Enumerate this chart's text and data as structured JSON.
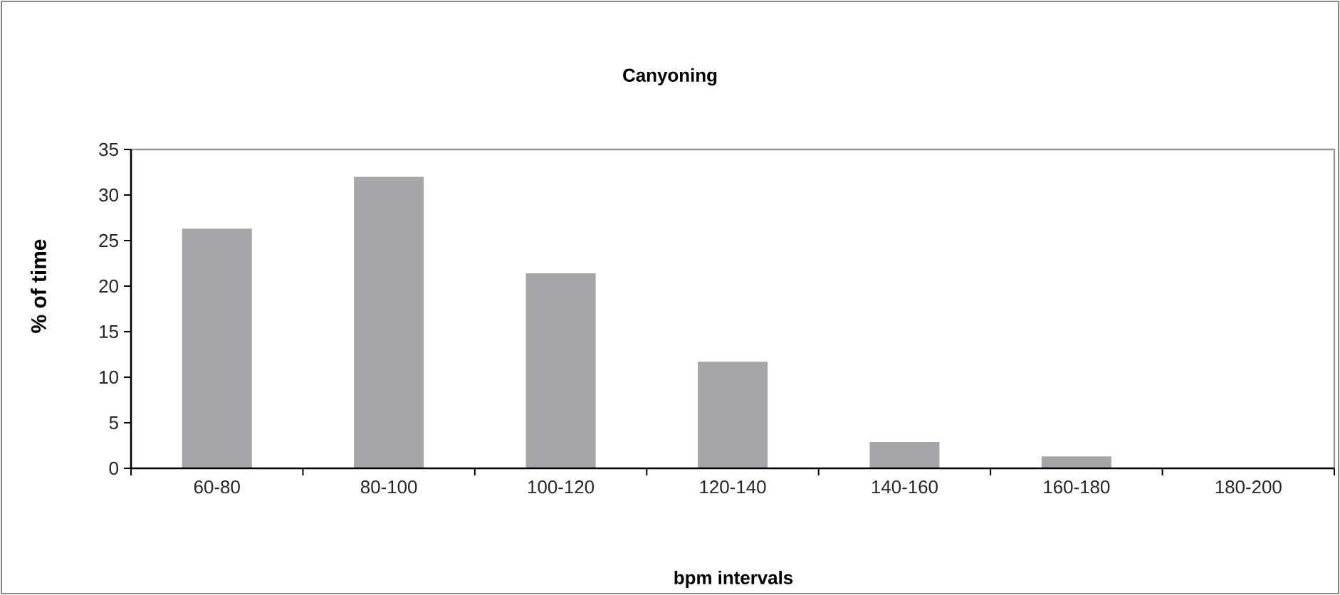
{
  "chart_data": {
    "type": "bar",
    "title": "Canyoning",
    "xlabel": "bpm  intervals",
    "ylabel": "%  of  time",
    "categories": [
      "60-80",
      "80-100",
      "100-120",
      "120-140",
      "140-160",
      "160-180",
      "180-200"
    ],
    "values": [
      26.3,
      32.0,
      21.4,
      11.7,
      2.9,
      1.3,
      0
    ],
    "color": "#a6a6a9",
    "ylim": [
      0,
      35
    ],
    "yticks": [
      0,
      5,
      10,
      15,
      20,
      25,
      30,
      35
    ]
  }
}
